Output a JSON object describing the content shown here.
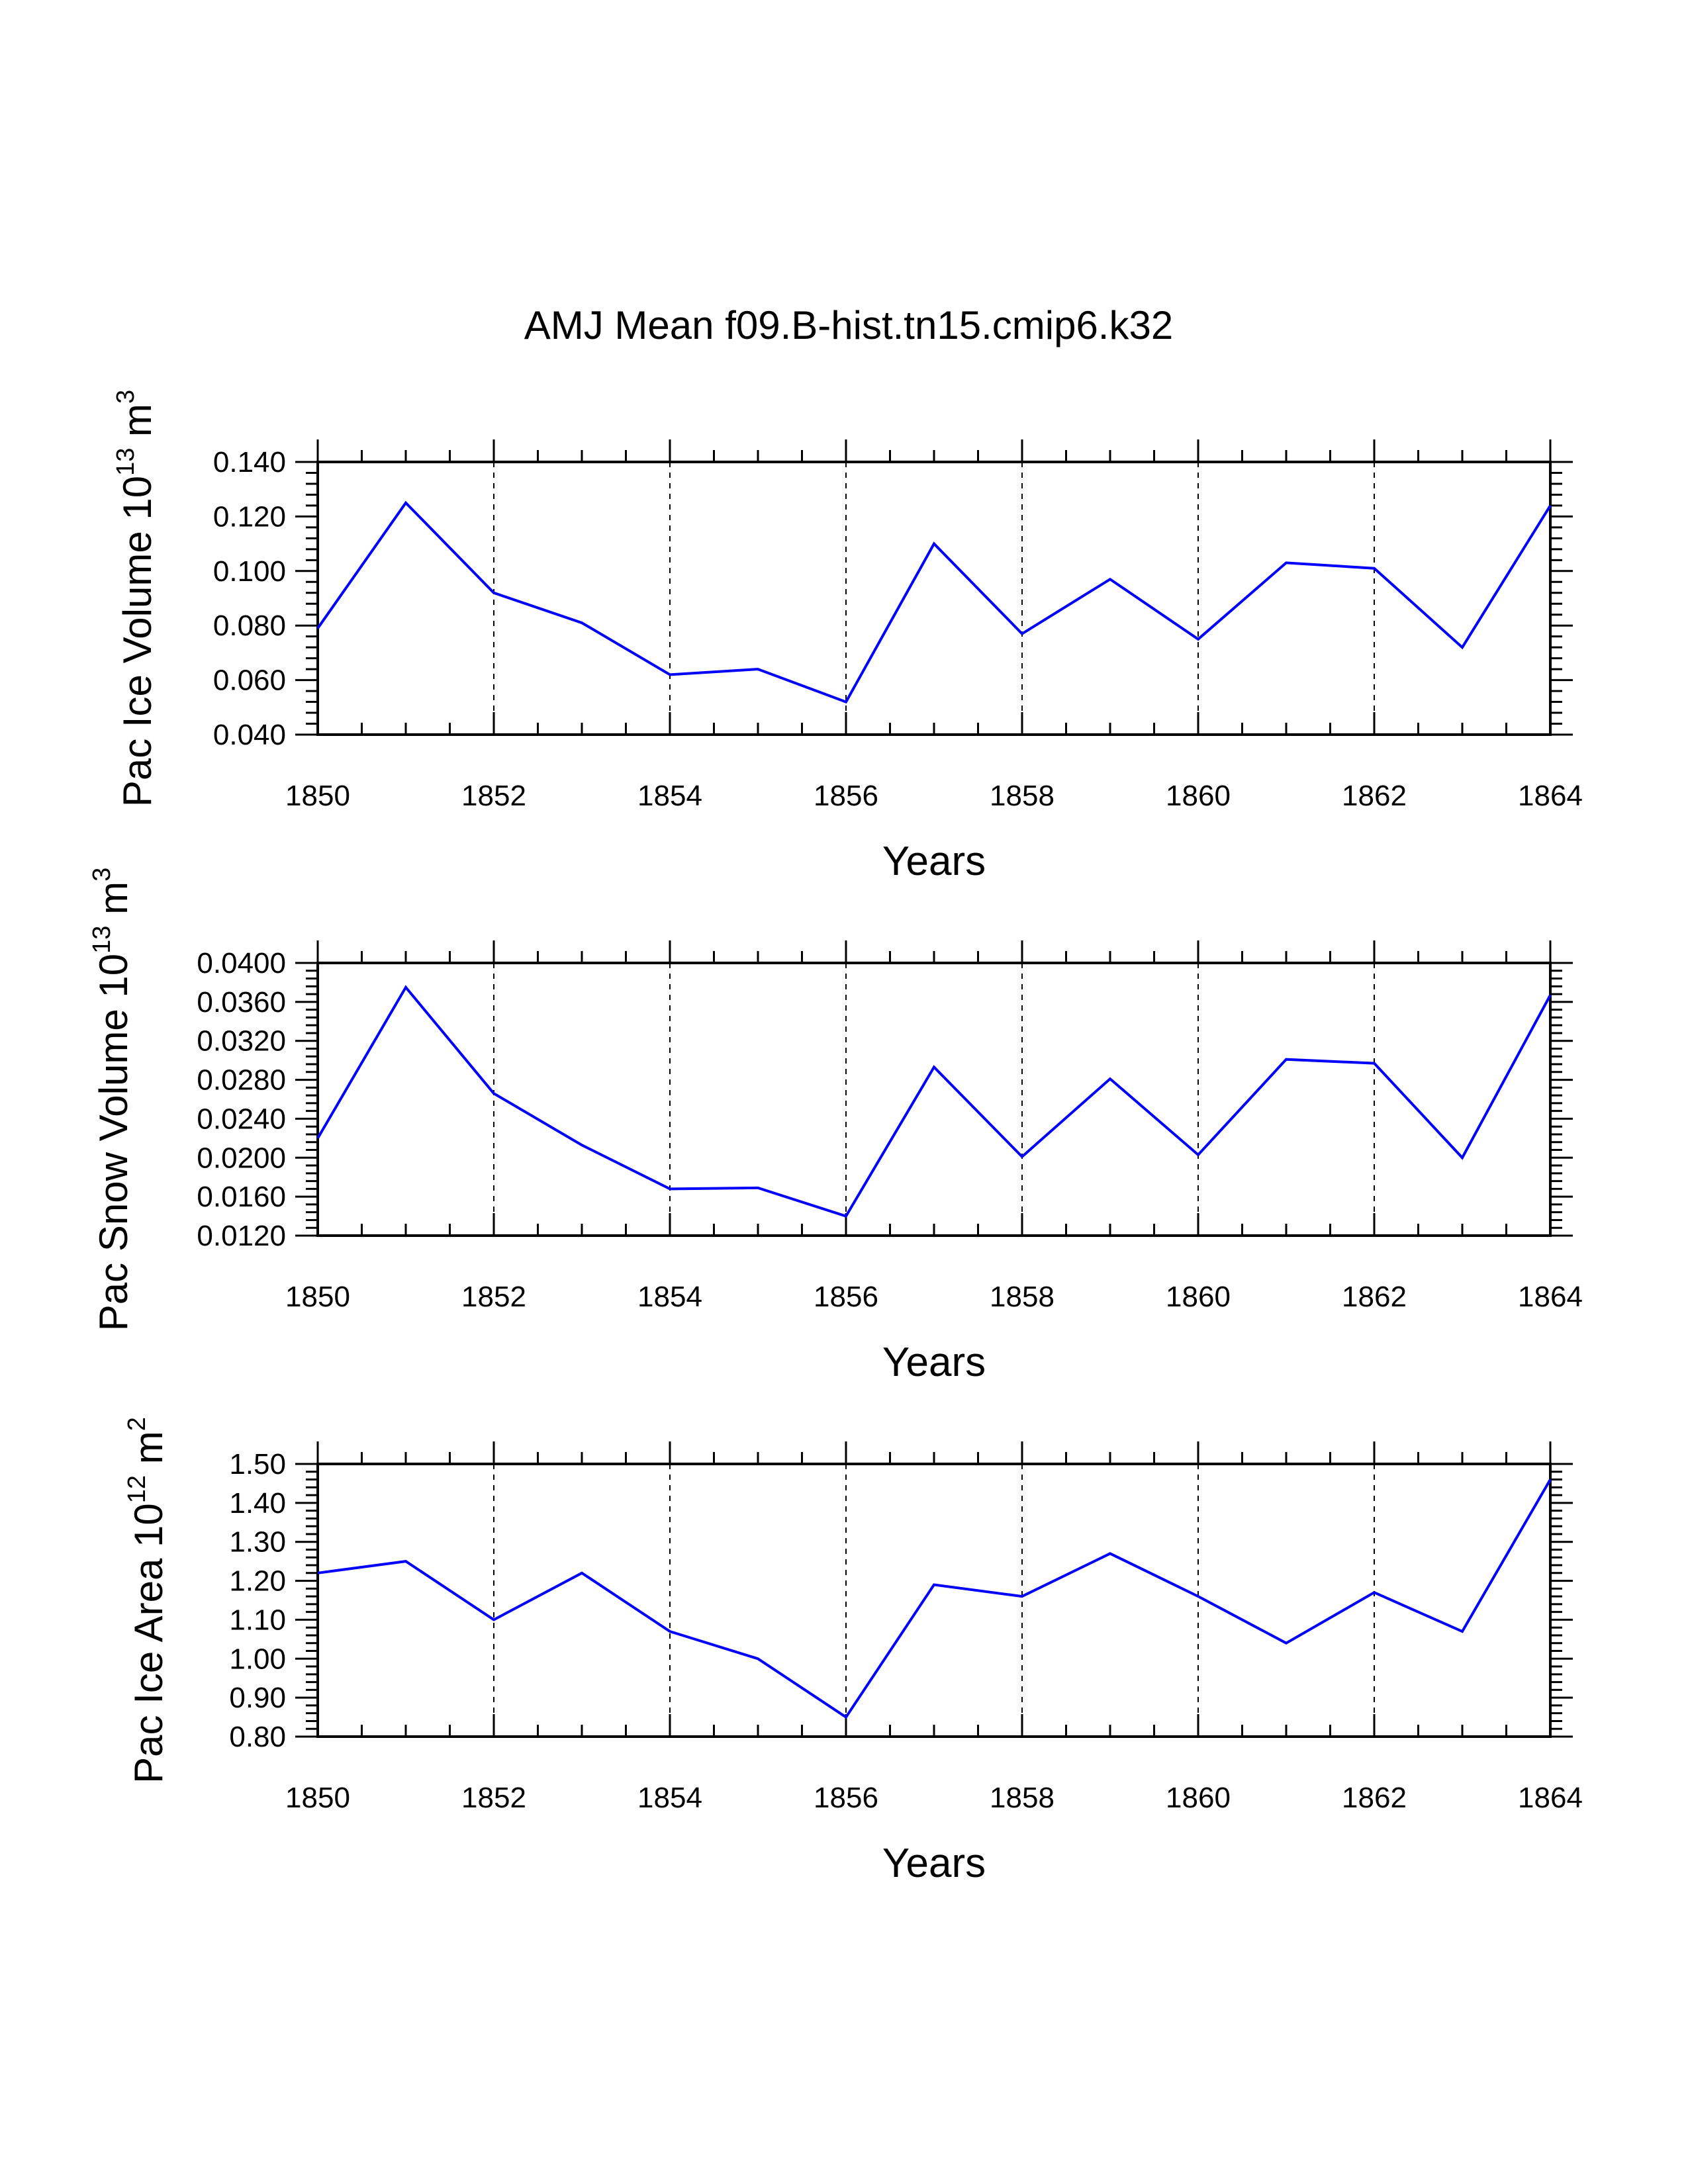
{
  "title": "AMJ Mean f09.B-hist.tn15.cmip6.k32",
  "chart_data": [
    {
      "type": "line",
      "title": "",
      "xlabel": "Years",
      "ylabel": {
        "main": "Pac Ice Volume 10",
        "exp": "13",
        "unit": " m",
        "unit_exp": "3"
      },
      "x": [
        1850,
        1851,
        1852,
        1853,
        1854,
        1855,
        1856,
        1857,
        1858,
        1859,
        1860,
        1861,
        1862,
        1863,
        1864
      ],
      "series": [
        {
          "name": "Pac Ice Volume",
          "color": "#0000ff",
          "values": [
            0.079,
            0.125,
            0.092,
            0.081,
            0.062,
            0.064,
            0.052,
            0.11,
            0.077,
            0.097,
            0.075,
            0.103,
            0.101,
            0.072,
            0.124
          ]
        }
      ],
      "xlim": [
        1850,
        1864
      ],
      "ylim": [
        0.04,
        0.14
      ],
      "xticks": [
        1850,
        1852,
        1854,
        1856,
        1858,
        1860,
        1862,
        1864
      ],
      "xtick_labels": [
        "1850",
        "1852",
        "1854",
        "1856",
        "1858",
        "1860",
        "1862",
        "1864"
      ],
      "yticks": [
        0.04,
        0.06,
        0.08,
        0.1,
        0.12,
        0.14
      ],
      "ytick_labels": [
        "0.040",
        "0.060",
        "0.080",
        "0.100",
        "0.120",
        "0.140"
      ],
      "grid": "vertical dashed at major x ticks"
    },
    {
      "type": "line",
      "title": "",
      "xlabel": "Years",
      "ylabel": {
        "main": "Pac Snow Volume 10",
        "exp": "13",
        "unit": " m",
        "unit_exp": "3"
      },
      "x": [
        1850,
        1851,
        1852,
        1853,
        1854,
        1855,
        1856,
        1857,
        1858,
        1859,
        1860,
        1861,
        1862,
        1863,
        1864
      ],
      "series": [
        {
          "name": "Pac Snow Volume",
          "color": "#0000ff",
          "values": [
            0.022,
            0.0375,
            0.0266,
            0.0213,
            0.0168,
            0.0169,
            0.014,
            0.0293,
            0.0201,
            0.0281,
            0.0203,
            0.0301,
            0.0297,
            0.02,
            0.0367
          ]
        }
      ],
      "xlim": [
        1850,
        1864
      ],
      "ylim": [
        0.012,
        0.04
      ],
      "xticks": [
        1850,
        1852,
        1854,
        1856,
        1858,
        1860,
        1862,
        1864
      ],
      "xtick_labels": [
        "1850",
        "1852",
        "1854",
        "1856",
        "1858",
        "1860",
        "1862",
        "1864"
      ],
      "yticks": [
        0.012,
        0.016,
        0.02,
        0.024,
        0.028,
        0.032,
        0.036,
        0.04
      ],
      "ytick_labels": [
        "0.0120",
        "0.0160",
        "0.0200",
        "0.0240",
        "0.0280",
        "0.0320",
        "0.0360",
        "0.0400"
      ],
      "grid": "vertical dashed at major x ticks"
    },
    {
      "type": "line",
      "title": "",
      "xlabel": "Years",
      "ylabel": {
        "main": "Pac Ice Area 10",
        "exp": "12",
        "unit": " m",
        "unit_exp": "2"
      },
      "x": [
        1850,
        1851,
        1852,
        1853,
        1854,
        1855,
        1856,
        1857,
        1858,
        1859,
        1860,
        1861,
        1862,
        1863,
        1864
      ],
      "series": [
        {
          "name": "Pac Ice Area",
          "color": "#0000ff",
          "values": [
            1.22,
            1.25,
            1.1,
            1.22,
            1.07,
            1.0,
            0.85,
            1.19,
            1.16,
            1.27,
            1.16,
            1.04,
            1.17,
            1.07,
            1.46
          ]
        }
      ],
      "xlim": [
        1850,
        1864
      ],
      "ylim": [
        0.8,
        1.5
      ],
      "xticks": [
        1850,
        1852,
        1854,
        1856,
        1858,
        1860,
        1862,
        1864
      ],
      "xtick_labels": [
        "1850",
        "1852",
        "1854",
        "1856",
        "1858",
        "1860",
        "1862",
        "1864"
      ],
      "yticks": [
        0.8,
        0.9,
        1.0,
        1.1,
        1.2,
        1.3,
        1.4,
        1.5
      ],
      "ytick_labels": [
        "0.80",
        "0.90",
        "1.00",
        "1.10",
        "1.20",
        "1.30",
        "1.40",
        "1.50"
      ],
      "grid": "vertical dashed at major x ticks"
    }
  ]
}
